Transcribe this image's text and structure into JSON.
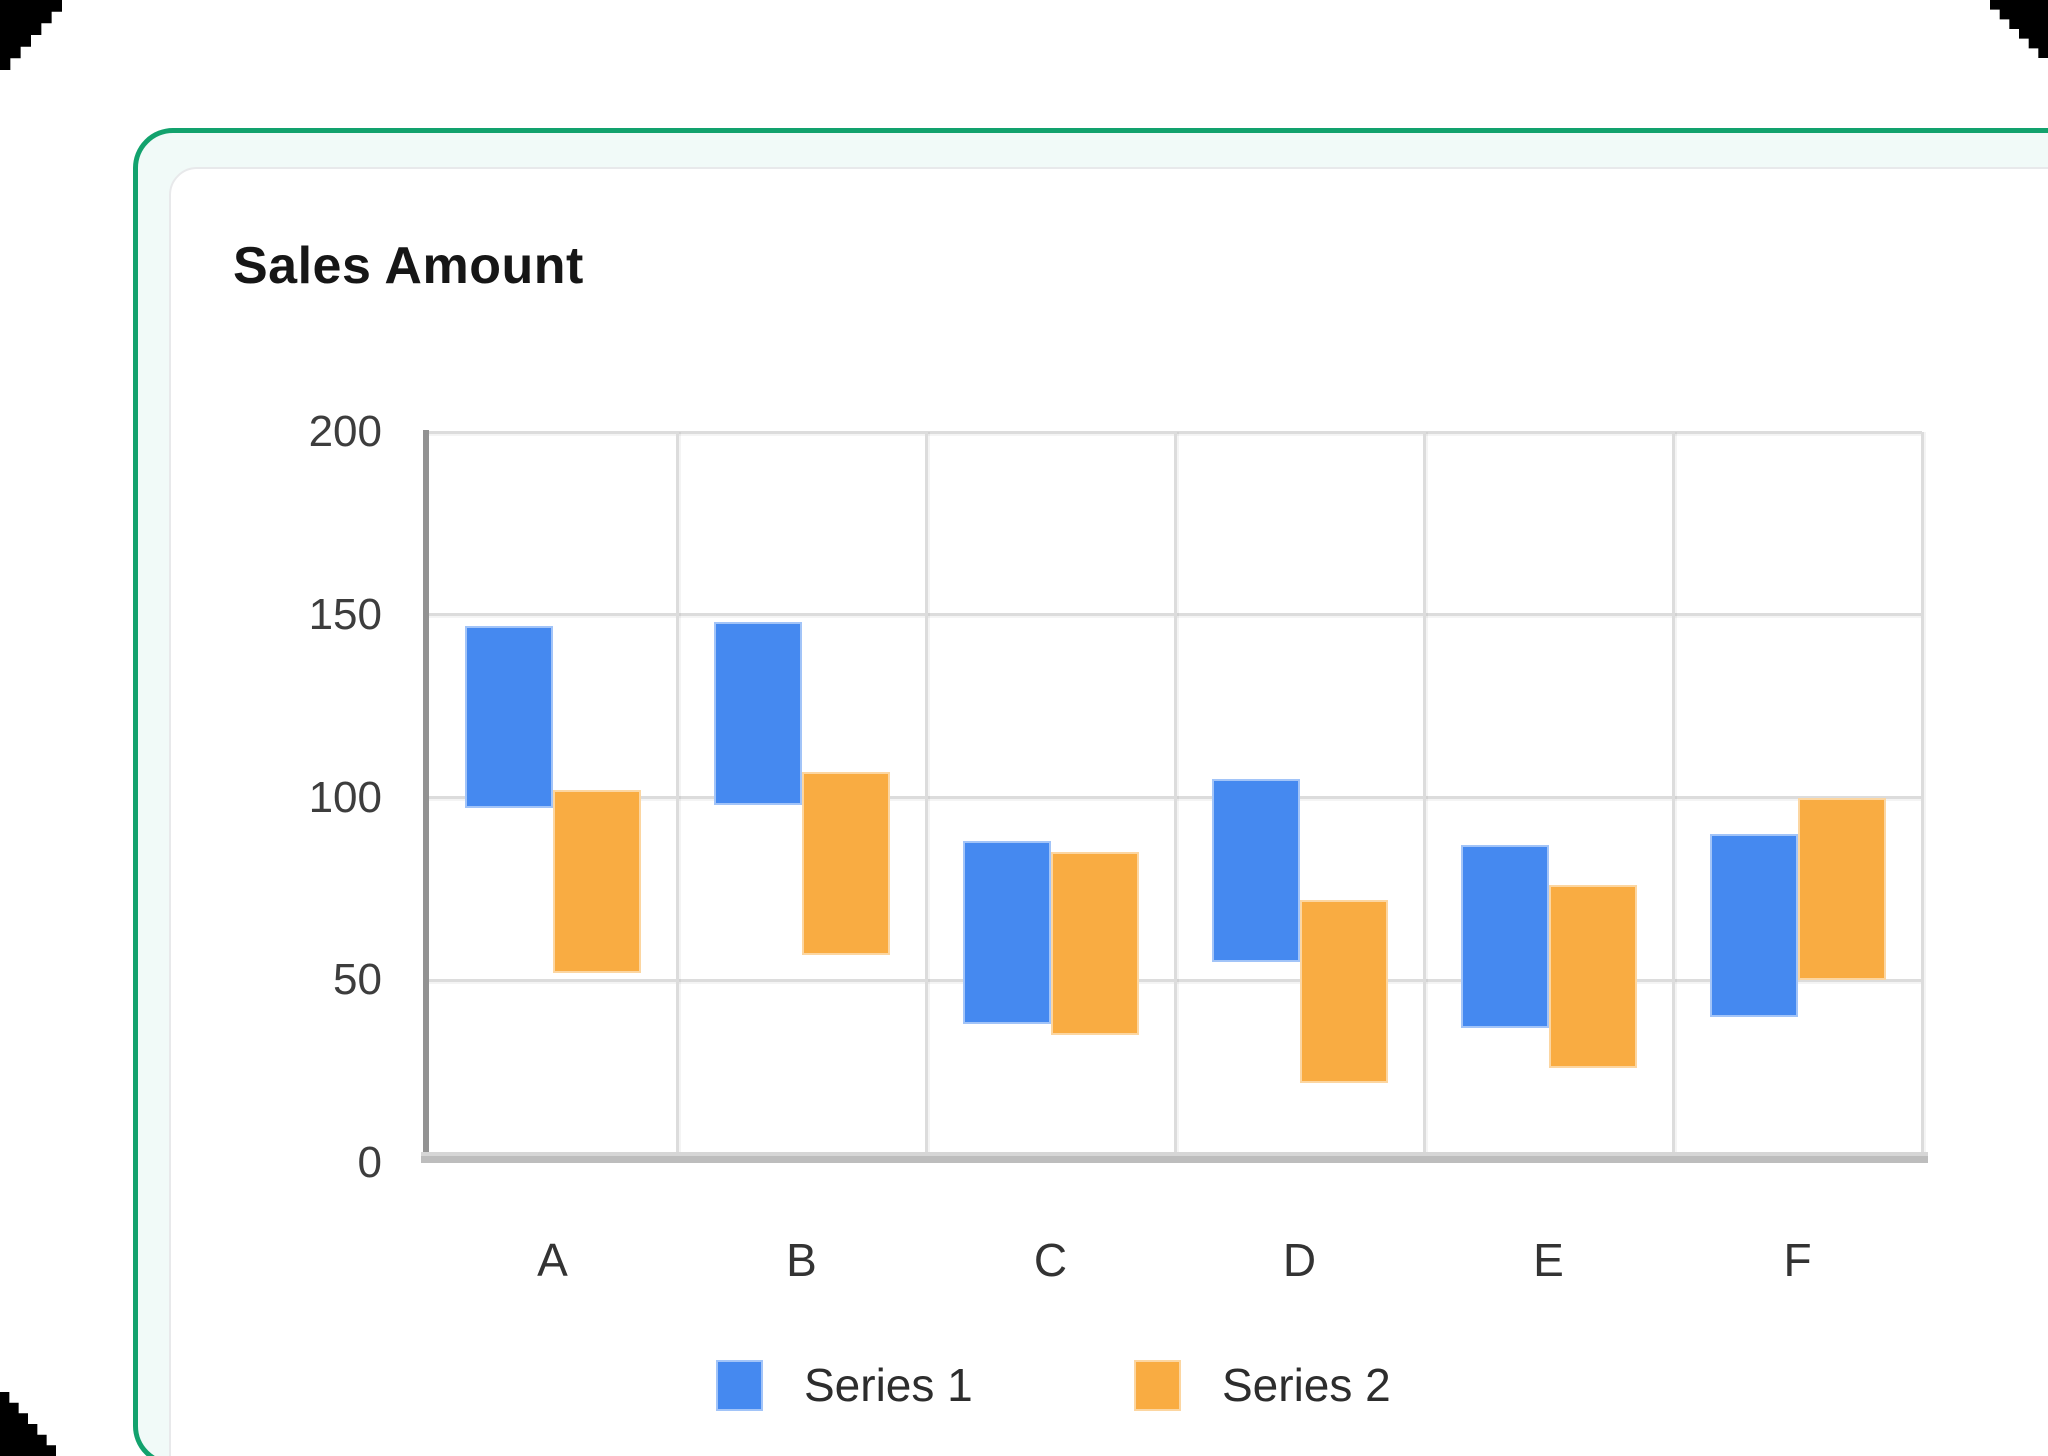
{
  "frame": {
    "border_color": "#12a26d",
    "tint_background": "#f1faf8",
    "card_background": "#ffffff",
    "card_border_color": "#e8e9eb"
  },
  "chart_data": {
    "type": "bar",
    "subtype": "floating-range-columns",
    "title": "Sales Amount",
    "categories": [
      "A",
      "B",
      "C",
      "D",
      "E",
      "F"
    ],
    "series": [
      {
        "name": "Series 1",
        "color": "#4589f0",
        "ranges": [
          [
            97,
            147
          ],
          [
            98,
            148
          ],
          [
            38,
            88
          ],
          [
            55,
            105
          ],
          [
            37,
            87
          ],
          [
            40,
            90
          ]
        ]
      },
      {
        "name": "Series 2",
        "color": "#f9ac42",
        "ranges": [
          [
            52,
            102
          ],
          [
            57,
            107
          ],
          [
            35,
            85
          ],
          [
            22,
            72
          ],
          [
            26,
            76
          ],
          [
            50,
            100
          ]
        ]
      }
    ],
    "xlabel": "",
    "ylabel": "",
    "ylim": [
      0,
      200
    ],
    "yticks": [
      0,
      50,
      100,
      150,
      200
    ],
    "grid": true,
    "gridline_color": "#dcdcdc",
    "axis_color": "#929292",
    "tick_text_color": "#3d3d3d",
    "legend_position": "bottom"
  }
}
